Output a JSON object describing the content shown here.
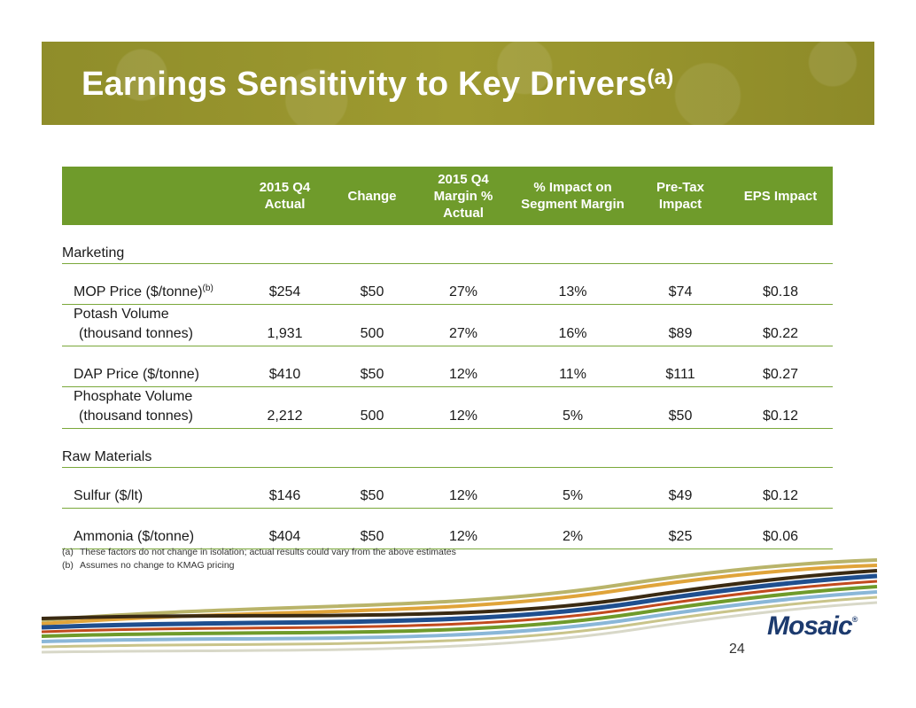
{
  "title": {
    "text": "Earnings Sensitivity to Key Drivers",
    "sup": "(a)"
  },
  "table": {
    "headers": [
      "",
      "2015 Q4 Actual",
      "Change",
      "2015 Q4 Margin % Actual",
      "% Impact on Segment Margin",
      "Pre-Tax Impact",
      "EPS Impact"
    ],
    "sections": [
      {
        "name": "Marketing",
        "rows": [
          {
            "label": "MOP Price ($/tonne)",
            "sup": "(b)",
            "cells": [
              "$254",
              "$50",
              "27%",
              "13%",
              "$74",
              "$0.18"
            ]
          },
          {
            "label": "Potash Volume",
            "label2": "(thousand tonnes)",
            "cells": [
              "1,931",
              "500",
              "27%",
              "16%",
              "$89",
              "$0.22"
            ]
          },
          {
            "label": "DAP Price ($/tonne)",
            "cells": [
              "$410",
              "$50",
              "12%",
              "11%",
              "$111",
              "$0.27"
            ]
          },
          {
            "label": "Phosphate Volume",
            "label2": "(thousand tonnes)",
            "cells": [
              "2,212",
              "500",
              "12%",
              "5%",
              "$50",
              "$0.12"
            ]
          }
        ]
      },
      {
        "name": "Raw Materials",
        "rows": [
          {
            "label": "Sulfur ($/lt)",
            "cells": [
              "$146",
              "$50",
              "12%",
              "5%",
              "$49",
              "$0.12"
            ]
          },
          {
            "label": "Ammonia ($/tonne)",
            "cells": [
              "$404",
              "$50",
              "12%",
              "2%",
              "$25",
              "$0.06"
            ]
          }
        ]
      }
    ]
  },
  "footnotes": [
    {
      "mark": "(a)",
      "text": "These factors do not change in isolation; actual results could vary from the above estimates"
    },
    {
      "mark": "(b)",
      "text": "Assumes no change to KMAG pricing"
    }
  ],
  "logo": {
    "text": "Mosaic",
    "reg": "®"
  },
  "page_number": "24",
  "colors": {
    "banner": "#9a962e",
    "header": "#6f9b2b",
    "rule": "#7aa83a"
  }
}
